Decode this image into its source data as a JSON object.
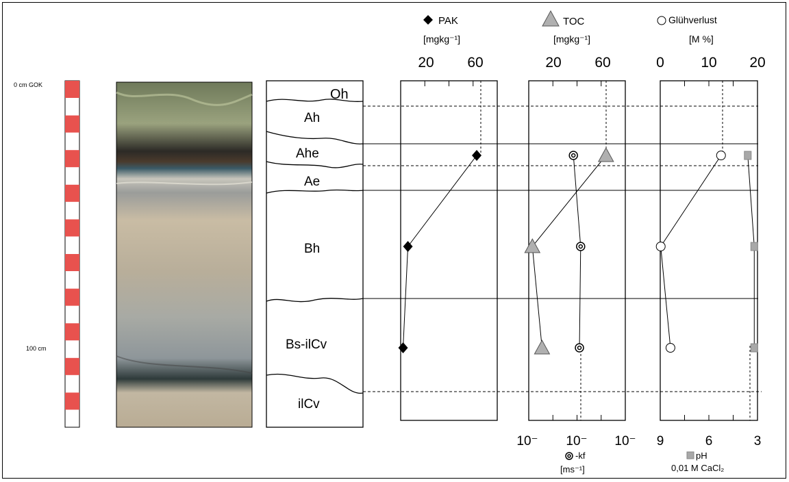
{
  "scale": {
    "top_label": "0 cm GOK",
    "depth_label": "100 cm"
  },
  "horizons": [
    "Oh",
    "Ah",
    "Ahe",
    "Ae",
    "Bh",
    "Bs-ilCv",
    "ilCv"
  ],
  "legend": {
    "pak": "PAK",
    "pak_unit": "[mgkg⁻¹]",
    "toc": "TOC",
    "toc_unit": "[mgkg⁻¹]",
    "gluehverlust": "Glühverlust",
    "gluehverlust_unit": "[M %]",
    "kf": "-kf",
    "kf_unit": "[ms⁻¹]",
    "ph": "pH",
    "ph_sub": "0,01 M CaCl₂"
  },
  "chart_data": [
    {
      "type": "scatter",
      "panel": "PAK",
      "xlim": [
        0,
        80
      ],
      "ticks_top": [
        "20",
        "60"
      ],
      "series": [
        {
          "name": "PAK",
          "marker": "diamond",
          "values": [
            {
              "horizon": "Ahe",
              "x": 63
            },
            {
              "horizon": "Bh",
              "x": 6
            },
            {
              "horizon": "Bs-ilCv",
              "x": 2
            }
          ]
        }
      ]
    },
    {
      "type": "scatter",
      "panel": "TOC / kf",
      "xlim": [
        0,
        80
      ],
      "ticks_top": [
        "20",
        "60"
      ],
      "ticks_bottom": [
        "10⁻",
        "10⁻",
        "10⁻"
      ],
      "series": [
        {
          "name": "TOC",
          "marker": "triangle",
          "values": [
            {
              "horizon": "Ahe",
              "x": 64
            },
            {
              "horizon": "Bh",
              "x": 3
            },
            {
              "horizon": "Bs-ilCv",
              "x": 11
            }
          ]
        },
        {
          "name": "-kf",
          "marker": "double-circle",
          "values": [
            {
              "horizon": "Ahe",
              "x": 37
            },
            {
              "horizon": "Bh",
              "x": 43
            },
            {
              "horizon": "Bs-ilCv",
              "x": 42
            }
          ]
        }
      ]
    },
    {
      "type": "scatter",
      "panel": "Glühverlust / pH",
      "xlim": [
        0,
        20
      ],
      "ticks_top": [
        "0",
        "10",
        "20"
      ],
      "ticks_bottom": [
        "9",
        "6",
        "3"
      ],
      "series": [
        {
          "name": "Glühverlust",
          "marker": "circle",
          "values": [
            {
              "horizon": "Ahe",
              "x": 12.5
            },
            {
              "horizon": "Bh",
              "x": 0.1
            },
            {
              "horizon": "Bs-ilCv",
              "x": 2.1
            }
          ]
        },
        {
          "name": "pH",
          "marker": "square",
          "values": [
            {
              "horizon": "Ahe",
              "x": 3.6
            },
            {
              "horizon": "Bh",
              "x": 3.2
            },
            {
              "horizon": "Bs-ilCv",
              "x": 3.2
            }
          ]
        }
      ]
    }
  ]
}
